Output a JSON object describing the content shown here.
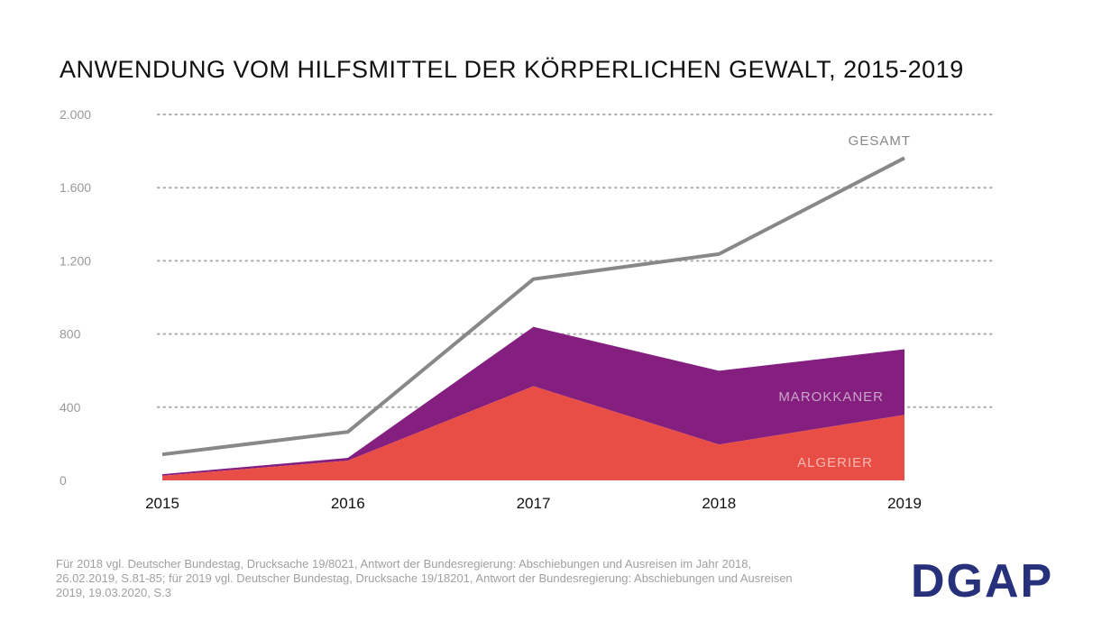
{
  "chart_data": {
    "type": "area",
    "title": "ANWENDUNG VOM HILFSMITTEL DER KÖRPERLICHEN GEWALT, 2015-2019",
    "categories": [
      "2015",
      "2016",
      "2017",
      "2018",
      "2019"
    ],
    "ylim": [
      0,
      2000
    ],
    "yticks": [
      0,
      400,
      800,
      1200,
      1600,
      2000
    ],
    "ytick_labels": [
      "0",
      "400",
      "800",
      "1.200",
      "1.600",
      "2.000"
    ],
    "grid": true,
    "series": [
      {
        "name": "ALGERIER",
        "kind": "stacked-area",
        "color": "#e84e45",
        "values": [
          25,
          108,
          515,
          196,
          358
        ]
      },
      {
        "name": "MAROKKANER",
        "kind": "stacked-area",
        "color": "#841e7f",
        "values": [
          9,
          15,
          324,
          403,
          359
        ]
      },
      {
        "name": "GESAMT",
        "kind": "line",
        "color": "#888888",
        "values": [
          142,
          265,
          1100,
          1237,
          1762
        ]
      }
    ]
  },
  "footer": {
    "source": "Für 2018 vgl. Deutscher Bundestag, Drucksache 19/8021, Antwort der Bundesregierung: Abschiebungen und Ausreisen im Jahr 2018, 26.02.2019, S.81-85; für 2019 vgl. Deutscher Bundestag, Drucksache 19/18201, Antwort der Bundesregierung: Abschiebungen und Ausreisen 2019, 19.03.2020, S.3"
  },
  "logo": {
    "text": "DGAP",
    "color": "#27307a"
  }
}
